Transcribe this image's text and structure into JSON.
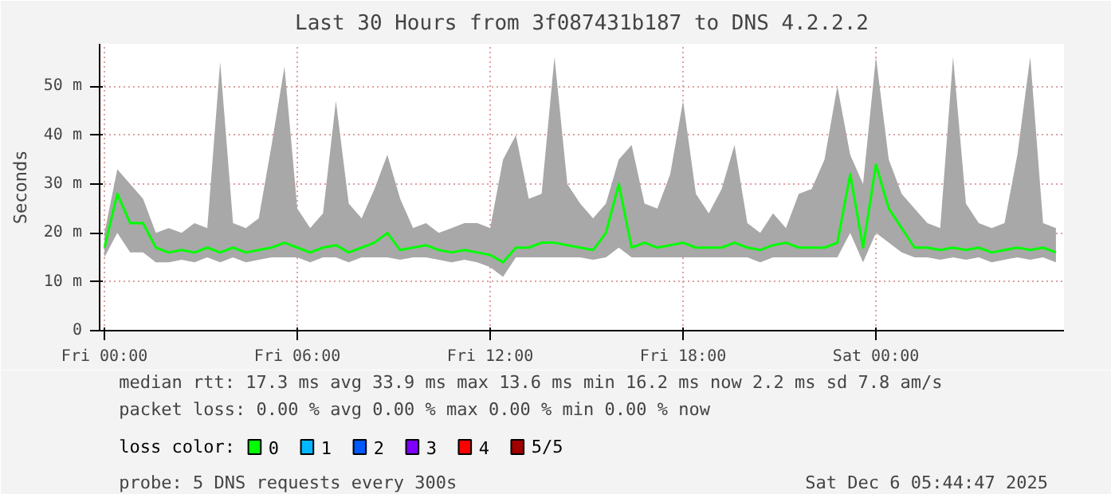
{
  "chart_data": {
    "type": "line",
    "title": "Last 30 Hours from 3f087431b187 to DNS 4.2.2.2",
    "ylabel": "Seconds",
    "x": [
      "2025-12-05T00:00",
      "2025-12-05T00:24",
      "2025-12-05T00:48",
      "2025-12-05T01:12",
      "2025-12-05T01:36",
      "2025-12-05T02:00",
      "2025-12-05T02:24",
      "2025-12-05T02:48",
      "2025-12-05T03:12",
      "2025-12-05T03:36",
      "2025-12-05T04:00",
      "2025-12-05T04:24",
      "2025-12-05T04:48",
      "2025-12-05T05:12",
      "2025-12-05T05:36",
      "2025-12-05T06:00",
      "2025-12-05T06:24",
      "2025-12-05T06:48",
      "2025-12-05T07:12",
      "2025-12-05T07:36",
      "2025-12-05T08:00",
      "2025-12-05T08:24",
      "2025-12-05T08:48",
      "2025-12-05T09:12",
      "2025-12-05T09:36",
      "2025-12-05T10:00",
      "2025-12-05T10:24",
      "2025-12-05T10:48",
      "2025-12-05T11:12",
      "2025-12-05T11:36",
      "2025-12-05T12:00",
      "2025-12-05T12:24",
      "2025-12-05T12:48",
      "2025-12-05T13:12",
      "2025-12-05T13:36",
      "2025-12-05T14:00",
      "2025-12-05T14:24",
      "2025-12-05T14:48",
      "2025-12-05T15:12",
      "2025-12-05T15:36",
      "2025-12-05T16:00",
      "2025-12-05T16:24",
      "2025-12-05T16:48",
      "2025-12-05T17:12",
      "2025-12-05T17:36",
      "2025-12-05T18:00",
      "2025-12-05T18:24",
      "2025-12-05T18:48",
      "2025-12-05T19:12",
      "2025-12-05T19:36",
      "2025-12-05T20:00",
      "2025-12-05T20:24",
      "2025-12-05T20:48",
      "2025-12-05T21:12",
      "2025-12-05T21:36",
      "2025-12-05T22:00",
      "2025-12-05T22:24",
      "2025-12-05T22:48",
      "2025-12-05T23:12",
      "2025-12-05T23:36",
      "2025-12-06T00:00",
      "2025-12-06T00:24",
      "2025-12-06T00:48",
      "2025-12-06T01:12",
      "2025-12-06T01:36",
      "2025-12-06T02:00",
      "2025-12-06T02:24",
      "2025-12-06T02:48",
      "2025-12-06T03:12",
      "2025-12-06T03:36",
      "2025-12-06T04:00",
      "2025-12-06T04:24",
      "2025-12-06T04:48",
      "2025-12-06T05:12",
      "2025-12-06T05:36"
    ],
    "series": [
      {
        "name": "0",
        "color": "#00ff00",
        "values": [
          17,
          28,
          22,
          22,
          17,
          16,
          16.5,
          16,
          17,
          16,
          17,
          16,
          16.5,
          17,
          18,
          17,
          16,
          17,
          17.5,
          16,
          17,
          18,
          20,
          16.5,
          17,
          17.5,
          16.5,
          16,
          16.5,
          16,
          15.5,
          14,
          17,
          17,
          18,
          18,
          17.5,
          17,
          16.5,
          20,
          30,
          17,
          18,
          17,
          17.5,
          18,
          17,
          17,
          17,
          18,
          17,
          16.5,
          17.5,
          18,
          17,
          17,
          17,
          18,
          32,
          17,
          34,
          25,
          21,
          17,
          17,
          16.5,
          17,
          16.5,
          17,
          16,
          16.5,
          17,
          16.5,
          17,
          16
        ],
        "lower": [
          15,
          20,
          16,
          16,
          14,
          14,
          14.5,
          14,
          15,
          14,
          15,
          14,
          14.5,
          15,
          15,
          15,
          14,
          15,
          15,
          14,
          15,
          15,
          15,
          14.5,
          15,
          15,
          14.5,
          14,
          14.5,
          14,
          13,
          11,
          15,
          15,
          15,
          15,
          15,
          15,
          14.5,
          15,
          17,
          15,
          15,
          15,
          15,
          15,
          15,
          15,
          15,
          15,
          15,
          14,
          15,
          15,
          15,
          15,
          15,
          15,
          20,
          14,
          20,
          18,
          16,
          15,
          15,
          14.5,
          15,
          14.5,
          15,
          14,
          14.5,
          15,
          14.5,
          15,
          14
        ],
        "upper": [
          20,
          33,
          30,
          27,
          20,
          21,
          20,
          22,
          21,
          55,
          22,
          21,
          23,
          38,
          54,
          25,
          21,
          24,
          47,
          26,
          23,
          29,
          36,
          27,
          21,
          22,
          20,
          21,
          22,
          22,
          21,
          35,
          40,
          27,
          28,
          56,
          30,
          26,
          23,
          26,
          35,
          38,
          26,
          25,
          32,
          47,
          28,
          24,
          29,
          38,
          22,
          20,
          24,
          21,
          28,
          29,
          35,
          50,
          36,
          30,
          56,
          35,
          28,
          25,
          22,
          21,
          56,
          26,
          22,
          21,
          22,
          36,
          56,
          22,
          21
        ]
      },
      {
        "name": "1",
        "color": "#00b8ff",
        "values": [
          null,
          null,
          null,
          null,
          null,
          null,
          null,
          null,
          null,
          null,
          null,
          null,
          null,
          null,
          null,
          null,
          null,
          null,
          null,
          null,
          null,
          null,
          null,
          null,
          null,
          null,
          null,
          null,
          null,
          null,
          null,
          null,
          null,
          null,
          null,
          null,
          null,
          null,
          null,
          null,
          null,
          null,
          null,
          null,
          null,
          null,
          null,
          null,
          null,
          null,
          null,
          null,
          null,
          null,
          null,
          null,
          null,
          null,
          null,
          null,
          null,
          null,
          null,
          null,
          null,
          null,
          null,
          null,
          null,
          null,
          null,
          null,
          null,
          null,
          null
        ]
      },
      {
        "name": "2",
        "color": "#0059ff",
        "values": [
          null,
          null,
          null,
          null,
          null,
          null,
          null,
          null,
          null,
          null,
          null,
          null,
          null,
          null,
          null,
          null,
          null,
          null,
          null,
          null,
          null,
          null,
          null,
          null,
          null,
          null,
          null,
          null,
          null,
          null,
          null,
          null,
          null,
          null,
          null,
          null,
          null,
          null,
          null,
          null,
          null,
          null,
          null,
          null,
          null,
          null,
          null,
          null,
          null,
          null,
          null,
          null,
          null,
          null,
          null,
          null,
          null,
          null,
          null,
          null,
          null,
          null,
          null,
          null,
          null,
          null,
          null,
          null,
          null,
          null,
          null,
          null,
          null,
          null,
          null
        ]
      },
      {
        "name": "3",
        "color": "#7e00ff",
        "values": [
          null,
          null,
          null,
          null,
          null,
          null,
          null,
          null,
          null,
          null,
          null,
          null,
          null,
          null,
          null,
          null,
          null,
          null,
          null,
          null,
          null,
          null,
          null,
          null,
          null,
          null,
          null,
          null,
          null,
          null,
          null,
          null,
          null,
          null,
          null,
          null,
          null,
          null,
          null,
          null,
          null,
          null,
          null,
          null,
          null,
          null,
          null,
          null,
          null,
          null,
          null,
          null,
          null,
          null,
          null,
          null,
          null,
          null,
          null,
          null,
          null,
          null,
          null,
          null,
          null,
          null,
          null,
          null,
          null,
          null,
          null,
          null,
          null,
          null,
          null
        ]
      },
      {
        "name": "4",
        "color": "#ff0000",
        "values": [
          null,
          null,
          null,
          null,
          null,
          null,
          null,
          null,
          null,
          null,
          null,
          null,
          null,
          null,
          null,
          null,
          null,
          null,
          null,
          null,
          null,
          null,
          null,
          null,
          null,
          null,
          null,
          null,
          null,
          null,
          null,
          null,
          null,
          null,
          null,
          null,
          null,
          null,
          null,
          null,
          null,
          null,
          null,
          null,
          null,
          null,
          null,
          null,
          null,
          null,
          null,
          null,
          null,
          null,
          null,
          null,
          null,
          null,
          null,
          null,
          null,
          null,
          null,
          null,
          null,
          null,
          null,
          null,
          null,
          null,
          null,
          null,
          null,
          null,
          null
        ]
      },
      {
        "name": "5/5",
        "color": "#a10000",
        "values": [
          null,
          null,
          null,
          null,
          null,
          null,
          null,
          null,
          null,
          null,
          null,
          null,
          null,
          null,
          null,
          null,
          null,
          null,
          null,
          null,
          null,
          null,
          null,
          null,
          null,
          null,
          null,
          null,
          null,
          null,
          null,
          null,
          null,
          null,
          null,
          null,
          null,
          null,
          null,
          null,
          null,
          null,
          null,
          null,
          null,
          null,
          null,
          null,
          null,
          null,
          null,
          null,
          null,
          null,
          null,
          null,
          null,
          null,
          null,
          null,
          null,
          null,
          null,
          null,
          null,
          null,
          null,
          null,
          null,
          null,
          null,
          null,
          null,
          null,
          null
        ]
      }
    ],
    "legend_title": "loss color:",
    "legend": "bottom",
    "grid": true,
    "xlim": [
      "2025-12-04T23:51",
      "2025-12-06T05:51"
    ],
    "xticks": [
      {
        "value": "2025-12-05T00:00",
        "label": "Fri 00:00"
      },
      {
        "value": "2025-12-05T06:00",
        "label": "Fri 06:00"
      },
      {
        "value": "2025-12-05T12:00",
        "label": "Fri 12:00"
      },
      {
        "value": "2025-12-05T18:00",
        "label": "Fri 18:00"
      },
      {
        "value": "2025-12-06T00:00",
        "label": "Sat 00:00"
      }
    ],
    "ylim": [
      0,
      58.7
    ],
    "yticks": [
      {
        "value": 0,
        "label": "0"
      },
      {
        "value": 10,
        "label": "10 m"
      },
      {
        "value": 20,
        "label": "20 m"
      },
      {
        "value": 30,
        "label": "30 m"
      },
      {
        "value": 40,
        "label": "40 m"
      },
      {
        "value": 50,
        "label": "50 m"
      }
    ],
    "annotations": [
      "median rtt:  17.3 ms avg  33.9 ms max  13.6 ms min  16.2 ms now  2.2 ms sd  7.8   am/s",
      "packet loss: 0.00 % avg  0.00 % max  0.00 % min  0.00 % now",
      "probe:       5 DNS requests every 300s",
      "Sat Dec  6 05:44:47 2025"
    ]
  }
}
